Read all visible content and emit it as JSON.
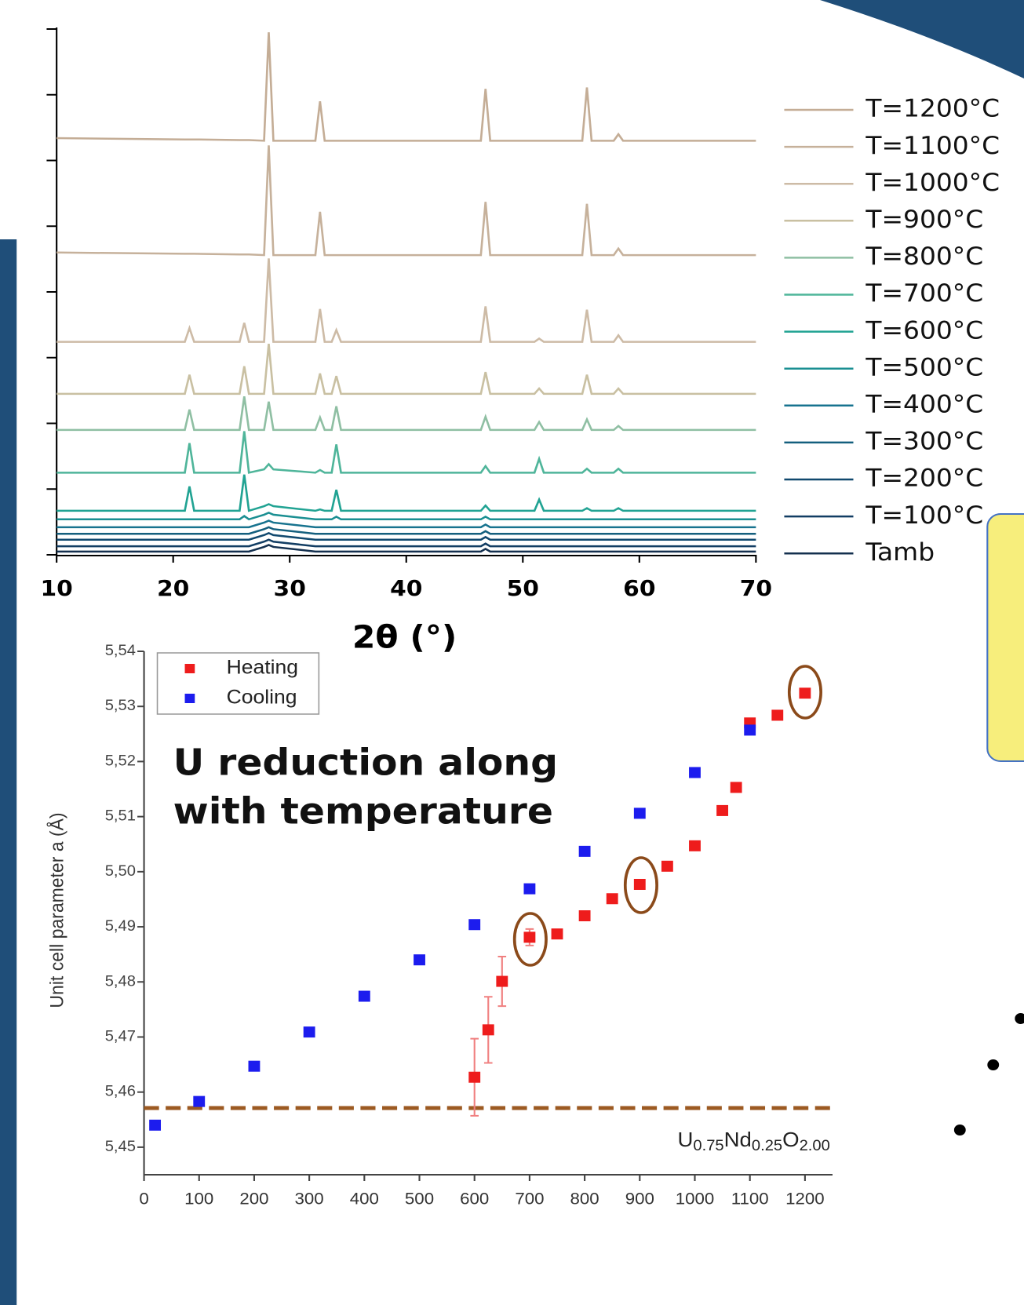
{
  "chart_data": [
    {
      "type": "line",
      "x_label": "2θ (°)",
      "x": [
        10,
        21.0,
        21.4,
        21.8,
        25.7,
        26.1,
        26.5,
        27.8,
        28.2,
        28.6,
        32.2,
        32.6,
        33.0,
        33.6,
        34.0,
        34.4,
        46.4,
        46.8,
        47.2,
        51.0,
        51.4,
        51.8,
        55.1,
        55.5,
        55.9,
        57.8,
        58.2,
        58.6,
        70
      ],
      "xlim": [
        10,
        70
      ],
      "xticks": [
        10,
        20,
        30,
        40,
        50,
        60,
        70
      ],
      "ylim": [
        0,
        8
      ],
      "yticks": [
        0,
        1,
        2,
        3,
        4,
        5,
        6,
        7,
        8
      ],
      "series": [
        {
          "name": "T=1200°C",
          "color": "#c4ad96",
          "values": [
            6.34,
            6.32,
            6.32,
            6.32,
            6.31,
            6.31,
            6.31,
            6.3,
            7.95,
            6.3,
            6.3,
            6.9,
            6.3,
            6.3,
            6.3,
            6.3,
            6.3,
            7.09,
            6.3,
            6.3,
            6.3,
            6.3,
            6.3,
            7.11,
            6.3,
            6.3,
            6.4,
            6.3,
            6.3
          ]
        },
        {
          "name": "T=1100°C",
          "color": "#c6b19b",
          "values": [
            4.6,
            4.58,
            4.58,
            4.58,
            4.57,
            4.57,
            4.57,
            4.56,
            6.23,
            4.56,
            4.56,
            5.22,
            4.56,
            4.56,
            4.56,
            4.56,
            4.56,
            5.37,
            4.56,
            4.56,
            4.56,
            4.56,
            4.56,
            5.34,
            4.56,
            4.56,
            4.66,
            4.56,
            4.56
          ]
        },
        {
          "name": "T=1000°C",
          "color": "#cdbba6",
          "values": [
            3.24,
            3.24,
            3.45,
            3.24,
            3.24,
            3.53,
            3.24,
            3.24,
            4.51,
            3.24,
            3.24,
            3.74,
            3.24,
            3.24,
            3.42,
            3.24,
            3.24,
            3.78,
            3.24,
            3.24,
            3.29,
            3.24,
            3.24,
            3.73,
            3.24,
            3.24,
            3.34,
            3.24,
            3.24
          ]
        },
        {
          "name": "T=900°C",
          "color": "#c9c0a2",
          "values": [
            2.45,
            2.45,
            2.74,
            2.45,
            2.45,
            2.87,
            2.45,
            2.45,
            3.21,
            2.45,
            2.45,
            2.76,
            2.45,
            2.45,
            2.72,
            2.45,
            2.45,
            2.78,
            2.45,
            2.45,
            2.53,
            2.45,
            2.45,
            2.74,
            2.45,
            2.45,
            2.53,
            2.45,
            2.45
          ]
        },
        {
          "name": "T=800°C",
          "color": "#8fbfa3",
          "values": [
            1.9,
            1.9,
            2.21,
            1.9,
            1.9,
            2.41,
            1.9,
            1.9,
            2.33,
            1.9,
            1.9,
            2.09,
            1.9,
            1.9,
            2.26,
            1.9,
            1.9,
            2.1,
            1.9,
            1.9,
            2.02,
            1.9,
            1.9,
            2.06,
            1.9,
            1.9,
            1.96,
            1.9,
            1.9
          ]
        },
        {
          "name": "T=700°C",
          "color": "#4fb59a",
          "values": [
            1.25,
            1.25,
            1.7,
            1.25,
            1.25,
            1.88,
            1.25,
            1.3,
            1.38,
            1.3,
            1.25,
            1.29,
            1.25,
            1.25,
            1.68,
            1.25,
            1.25,
            1.35,
            1.25,
            1.25,
            1.46,
            1.25,
            1.25,
            1.31,
            1.25,
            1.25,
            1.31,
            1.25,
            1.25
          ]
        },
        {
          "name": "T=600°C",
          "color": "#21a393",
          "values": [
            0.67,
            0.67,
            1.04,
            0.67,
            0.67,
            1.22,
            0.67,
            0.74,
            0.77,
            0.74,
            0.67,
            0.69,
            0.67,
            0.67,
            0.99,
            0.67,
            0.67,
            0.75,
            0.67,
            0.67,
            0.84,
            0.67,
            0.67,
            0.71,
            0.67,
            0.67,
            0.71,
            0.67,
            0.67
          ]
        },
        {
          "name": "T=500°C",
          "color": "#1a8f92",
          "values": [
            0.54,
            0.54,
            0.54,
            0.54,
            0.54,
            0.59,
            0.54,
            0.61,
            0.64,
            0.61,
            0.54,
            0.54,
            0.54,
            0.54,
            0.58,
            0.54,
            0.54,
            0.58,
            0.54,
            0.54,
            0.54,
            0.54,
            0.54,
            0.54,
            0.54,
            0.54,
            0.54,
            0.54,
            0.54
          ]
        },
        {
          "name": "T=400°C",
          "color": "#17738f",
          "values": [
            0.42,
            0.42,
            0.42,
            0.42,
            0.42,
            0.42,
            0.42,
            0.49,
            0.52,
            0.49,
            0.42,
            0.42,
            0.42,
            0.42,
            0.42,
            0.42,
            0.42,
            0.46,
            0.42,
            0.42,
            0.42,
            0.42,
            0.42,
            0.42,
            0.42,
            0.42,
            0.42,
            0.42,
            0.42
          ]
        },
        {
          "name": "T=300°C",
          "color": "#145f7e",
          "values": [
            0.32,
            0.32,
            0.32,
            0.32,
            0.32,
            0.32,
            0.32,
            0.39,
            0.42,
            0.39,
            0.32,
            0.32,
            0.32,
            0.32,
            0.32,
            0.32,
            0.32,
            0.36,
            0.32,
            0.32,
            0.32,
            0.32,
            0.32,
            0.32,
            0.32,
            0.32,
            0.32,
            0.32,
            0.32
          ]
        },
        {
          "name": "T=200°C",
          "color": "#11496f",
          "values": [
            0.23,
            0.23,
            0.23,
            0.23,
            0.23,
            0.23,
            0.23,
            0.3,
            0.33,
            0.3,
            0.23,
            0.23,
            0.23,
            0.23,
            0.23,
            0.23,
            0.23,
            0.27,
            0.23,
            0.23,
            0.23,
            0.23,
            0.23,
            0.23,
            0.23,
            0.23,
            0.23,
            0.23,
            0.23
          ]
        },
        {
          "name": "T=100°C",
          "color": "#123d63",
          "values": [
            0.13,
            0.13,
            0.13,
            0.13,
            0.13,
            0.13,
            0.13,
            0.2,
            0.23,
            0.2,
            0.13,
            0.13,
            0.13,
            0.13,
            0.13,
            0.13,
            0.13,
            0.17,
            0.13,
            0.13,
            0.13,
            0.13,
            0.13,
            0.13,
            0.13,
            0.13,
            0.13,
            0.13,
            0.13
          ]
        },
        {
          "name": "Tamb",
          "color": "#14304f",
          "values": [
            0.05,
            0.05,
            0.05,
            0.05,
            0.05,
            0.05,
            0.05,
            0.12,
            0.15,
            0.12,
            0.05,
            0.05,
            0.05,
            0.05,
            0.05,
            0.05,
            0.05,
            0.09,
            0.05,
            0.05,
            0.05,
            0.05,
            0.05,
            0.05,
            0.05,
            0.05,
            0.05,
            0.05,
            0.05
          ]
        }
      ]
    },
    {
      "type": "scatter",
      "y_label": "Unit cell parameter a (Å)",
      "annotation_lines": [
        "U reduction along",
        "with temperature"
      ],
      "xlim": [
        0,
        1250
      ],
      "xticks": [
        0,
        100,
        200,
        300,
        400,
        500,
        600,
        700,
        800,
        900,
        1000,
        1100,
        1200
      ],
      "ylim": [
        5.445,
        5.54
      ],
      "yticks": [
        {
          "value": 5.45,
          "label": "5,45"
        },
        {
          "value": 5.46,
          "label": "5,46"
        },
        {
          "value": 5.47,
          "label": "5,47"
        },
        {
          "value": 5.48,
          "label": "5,48"
        },
        {
          "value": 5.49,
          "label": "5,49"
        },
        {
          "value": 5.5,
          "label": "5,50"
        },
        {
          "value": 5.51,
          "label": "5,51"
        },
        {
          "value": 5.52,
          "label": "5,52"
        },
        {
          "value": 5.53,
          "label": "5,53"
        },
        {
          "value": 5.54,
          "label": "5,54"
        }
      ],
      "legend": "upper left",
      "reference_line": {
        "value": 5.4571,
        "color": "#9c5a22",
        "label_parts": [
          "U",
          "0.75",
          "Nd",
          "0.25",
          "O",
          "2.00"
        ]
      },
      "series": [
        {
          "name": "Heating",
          "color": "#ee1c1c",
          "x": [
            600,
            625,
            650,
            700,
            750,
            800,
            850,
            900,
            950,
            1000,
            1050,
            1075,
            1100,
            1150,
            1200
          ],
          "values": [
            5.4627,
            5.4713,
            5.4801,
            5.4881,
            5.4887,
            5.492,
            5.4951,
            5.4977,
            5.501,
            5.5047,
            5.5111,
            5.5153,
            5.527,
            5.5284,
            5.5324
          ],
          "errors": [
            0.007,
            0.006,
            0.0045,
            0.0015,
            null,
            null,
            null,
            null,
            null,
            null,
            null,
            null,
            null,
            null,
            null
          ]
        },
        {
          "name": "Cooling",
          "color": "#1c1cee",
          "x": [
            20,
            100,
            200,
            300,
            400,
            500,
            600,
            700,
            800,
            900,
            1000,
            1100
          ],
          "values": [
            5.454,
            5.4583,
            5.4647,
            5.4709,
            5.4774,
            5.484,
            5.4904,
            5.4969,
            5.5037,
            5.5106,
            5.518,
            5.5257
          ]
        }
      ]
    }
  ]
}
